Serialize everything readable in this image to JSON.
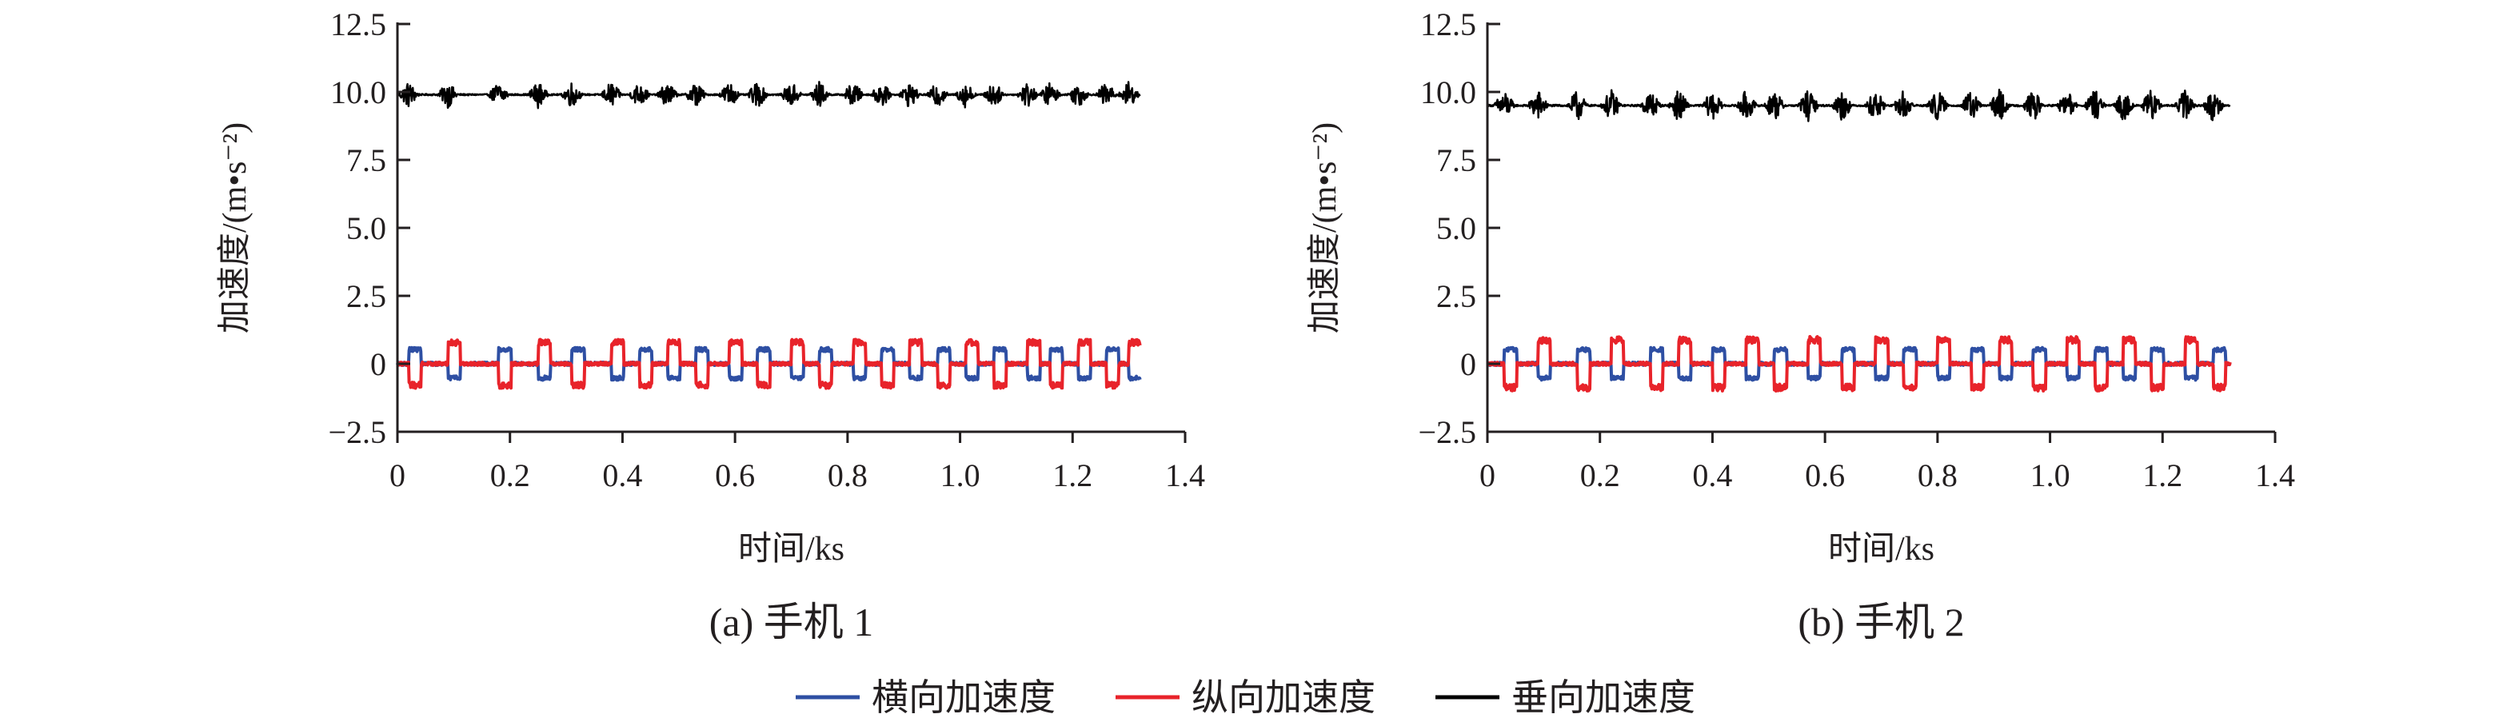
{
  "colors": {
    "lateral": "#2e4fa3",
    "longitudinal": "#e8232a",
    "vertical": "#000000",
    "axis": "#231f20"
  },
  "legend": [
    {
      "label": "横向加速度",
      "color": "#2e4fa3",
      "series": "lateral"
    },
    {
      "label": "纵向加速度",
      "color": "#e8232a",
      "series": "longitudinal"
    },
    {
      "label": "垂向加速度",
      "color": "#000000",
      "series": "vertical"
    }
  ],
  "chart_data": [
    {
      "type": "line",
      "caption": "(a) 手机 1",
      "xlabel": "时间/ks",
      "ylabel": "加速度/(m•s⁻²)",
      "xlim": [
        0,
        1.4
      ],
      "ylim": [
        -2.5,
        12.5
      ],
      "xticks": [
        0,
        0.2,
        0.4,
        0.6,
        0.8,
        1.0,
        1.2,
        1.4
      ],
      "xtick_labels": [
        "0",
        "0.2",
        "0.4",
        "0.6",
        "0.8",
        "1.0",
        "1.2",
        "1.4"
      ],
      "yticks": [
        -2.5,
        0,
        2.5,
        5.0,
        7.5,
        10.0,
        12.5
      ],
      "ytick_labels": [
        "−2.5",
        "0",
        "2.5",
        "5.0",
        "7.5",
        "10.0",
        "12.5"
      ],
      "grid": false,
      "data_end": 1.32,
      "turn_events": [
        0.02,
        0.09,
        0.18,
        0.25,
        0.31,
        0.38,
        0.43,
        0.48,
        0.53,
        0.59,
        0.64,
        0.7,
        0.75,
        0.81,
        0.86,
        0.91,
        0.96,
        1.01,
        1.06,
        1.12,
        1.16,
        1.21,
        1.26,
        1.3
      ],
      "series": [
        {
          "key": "lateral",
          "baseline": 0.0,
          "amplitude": 0.6
        },
        {
          "key": "longitudinal",
          "baseline": 0.0,
          "amplitude": 0.9
        },
        {
          "key": "vertical",
          "baseline": 9.9,
          "amplitude": 0.5
        }
      ]
    },
    {
      "type": "line",
      "caption": "(b) 手机 2",
      "xlabel": "时间/ks",
      "ylabel": "加速度/(m•s⁻²)",
      "xlim": [
        0,
        1.4
      ],
      "ylim": [
        -2.5,
        12.5
      ],
      "xticks": [
        0,
        0.2,
        0.4,
        0.6,
        0.8,
        1.0,
        1.2,
        1.4
      ],
      "xtick_labels": [
        "0",
        "0.2",
        "0.4",
        "0.6",
        "0.8",
        "1.0",
        "1.2",
        "1.4"
      ],
      "yticks": [
        -2.5,
        0,
        2.5,
        5.0,
        7.5,
        10.0,
        12.5
      ],
      "ytick_labels": [
        "−2.5",
        "0",
        "2.5",
        "5.0",
        "7.5",
        "10.0",
        "12.5"
      ],
      "grid": false,
      "data_end": 1.32,
      "turn_events": [
        0.03,
        0.09,
        0.16,
        0.22,
        0.29,
        0.34,
        0.4,
        0.46,
        0.51,
        0.57,
        0.63,
        0.69,
        0.74,
        0.8,
        0.86,
        0.91,
        0.97,
        1.03,
        1.08,
        1.13,
        1.18,
        1.24,
        1.29
      ],
      "series": [
        {
          "key": "lateral",
          "baseline": 0.0,
          "amplitude": 0.6
        },
        {
          "key": "longitudinal",
          "baseline": 0.0,
          "amplitude": 1.0
        },
        {
          "key": "vertical",
          "baseline": 9.5,
          "amplitude": 0.6
        }
      ]
    }
  ]
}
